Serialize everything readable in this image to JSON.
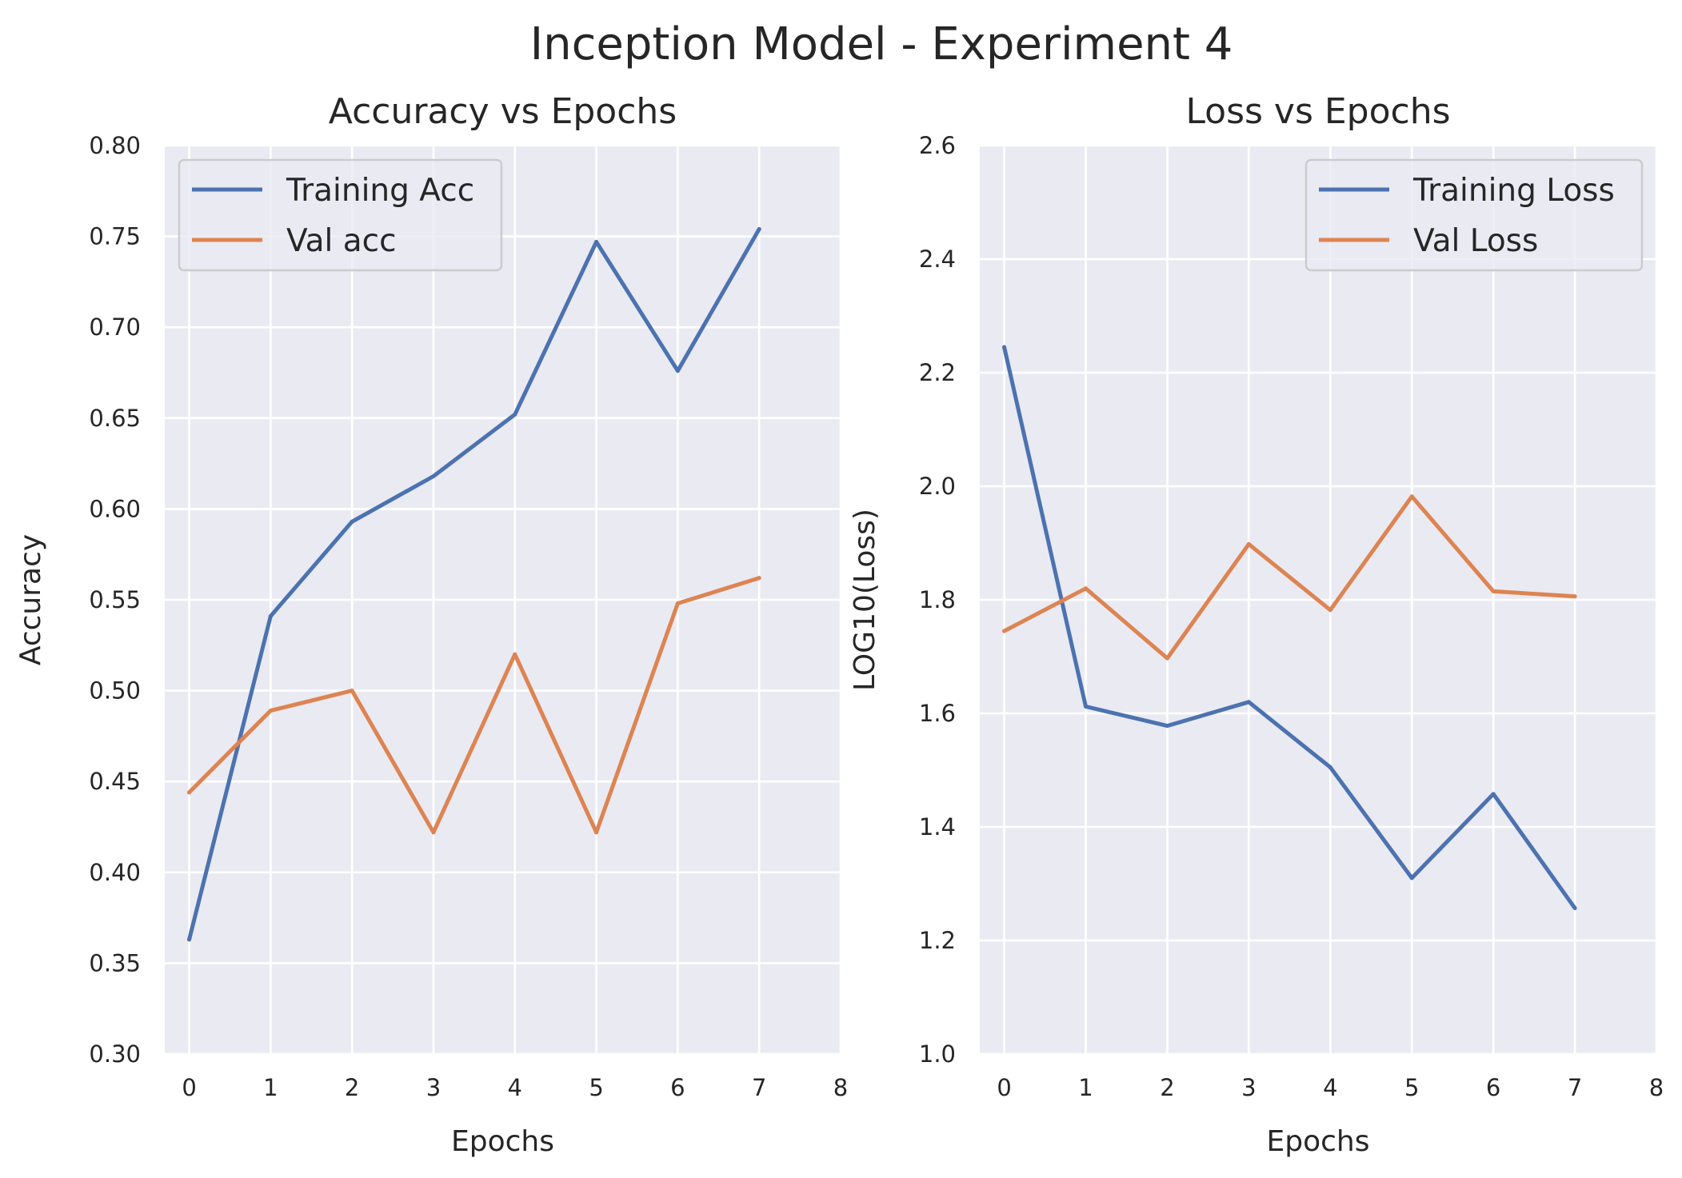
{
  "figure": {
    "suptitle": "Inception Model - Experiment 4"
  },
  "colors": {
    "background": "#ffffff",
    "plot_bg": "#eaeaf2",
    "grid": "#ffffff",
    "series_blue": "#4c72b0",
    "series_orange": "#dd8452",
    "legend_bg": "#eaeaf2",
    "legend_border": "#cccccc"
  },
  "chart_data": [
    {
      "type": "line",
      "title": "Accuracy vs Epochs",
      "xlabel": "Epochs",
      "ylabel": "Accuracy",
      "xlim": [
        -0.3,
        8.0
      ],
      "ylim": [
        0.3,
        0.8
      ],
      "xticks": [
        "0",
        "1",
        "2",
        "3",
        "4",
        "5",
        "6",
        "7",
        "8"
      ],
      "yticks": [
        "0.30",
        "0.35",
        "0.40",
        "0.45",
        "0.50",
        "0.55",
        "0.60",
        "0.65",
        "0.70",
        "0.75",
        "0.80"
      ],
      "grid": true,
      "legend_position": "upper left",
      "x": [
        0,
        1,
        2,
        3,
        4,
        5,
        6,
        7
      ],
      "series": [
        {
          "name": "Training Acc",
          "color": "#4c72b0",
          "values": [
            0.363,
            0.541,
            0.593,
            0.618,
            0.652,
            0.747,
            0.676,
            0.754
          ]
        },
        {
          "name": "Val acc",
          "color": "#dd8452",
          "values": [
            0.444,
            0.489,
            0.5,
            0.422,
            0.52,
            0.422,
            0.548,
            0.562
          ]
        }
      ]
    },
    {
      "type": "line",
      "title": "Loss vs Epochs",
      "xlabel": "Epochs",
      "ylabel": "LOG10(Loss)",
      "xlim": [
        -0.3,
        8.0
      ],
      "ylim": [
        1.0,
        2.6
      ],
      "xticks": [
        "0",
        "1",
        "2",
        "3",
        "4",
        "5",
        "6",
        "7",
        "8"
      ],
      "yticks": [
        "1.0",
        "1.2",
        "1.4",
        "1.6",
        "1.8",
        "2.0",
        "2.2",
        "2.4",
        "2.6"
      ],
      "grid": true,
      "legend_position": "upper right",
      "x": [
        0,
        1,
        2,
        3,
        4,
        5,
        6,
        7
      ],
      "series": [
        {
          "name": "Training Loss",
          "color": "#4c72b0",
          "values": [
            2.245,
            1.612,
            1.578,
            1.62,
            1.505,
            1.31,
            1.458,
            1.257
          ]
        },
        {
          "name": "Val Loss",
          "color": "#dd8452",
          "values": [
            1.745,
            1.82,
            1.697,
            1.898,
            1.782,
            1.982,
            1.815,
            1.806
          ]
        }
      ]
    }
  ]
}
